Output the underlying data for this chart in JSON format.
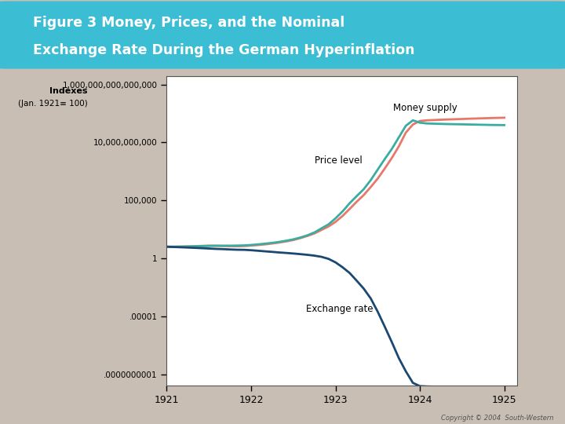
{
  "title_line1": "Figure 3 Money, Prices, and the Nominal",
  "title_line2": "Exchange Rate During the German Hyperinflation",
  "copyright": "Copyright © 2004  South-Western",
  "background_color": "#c8beb3",
  "plot_bg_color": "#ffffff",
  "title_bg_color": "#3bbdd4",
  "title_text_color": "#ffffff",
  "money_supply_color": "#e8786a",
  "price_level_color": "#3aada0",
  "exchange_rate_color": "#1a4870",
  "money_supply_label": "Money supply",
  "price_level_label": "Price level",
  "exchange_rate_label": "Exchange rate",
  "ytick_labels": [
    "1,000,000,000,000,000",
    "10,000,000,000",
    "100,000",
    "1",
    ".00001",
    ".0000000001"
  ],
  "ytick_values": [
    1000000000000000.0,
    10000000000.0,
    100000.0,
    1.0,
    1e-05,
    1e-10
  ],
  "ylim_min": 1e-11,
  "ylim_max": 5000000000000000.0,
  "x_years": [
    1921.0,
    1921.083,
    1921.167,
    1921.25,
    1921.333,
    1921.417,
    1921.5,
    1921.583,
    1921.667,
    1921.75,
    1921.833,
    1921.917,
    1922.0,
    1922.083,
    1922.167,
    1922.25,
    1922.333,
    1922.417,
    1922.5,
    1922.583,
    1922.667,
    1922.75,
    1922.833,
    1922.917,
    1923.0,
    1923.083,
    1923.167,
    1923.25,
    1923.333,
    1923.417,
    1923.5,
    1923.583,
    1923.667,
    1923.75,
    1923.833,
    1923.917,
    1924.0,
    1924.083,
    1924.167,
    1924.25,
    1924.333,
    1924.417,
    1924.5,
    1924.583,
    1924.667,
    1924.75,
    1924.833,
    1924.917,
    1925.0
  ],
  "money_supply_values": [
    10,
    10,
    10.3,
    10.8,
    11.2,
    11.8,
    12.3,
    12.0,
    11.5,
    11.2,
    11.0,
    11.4,
    12.5,
    14.0,
    16.0,
    19.0,
    23.0,
    29.0,
    38.0,
    55.0,
    85.0,
    140.0,
    280.0,
    560.0,
    1400.0,
    4500.0,
    18000.0,
    75000.0,
    280000.0,
    1400000.0,
    7500000.0,
    55000000.0,
    450000000.0,
    4500000000.0,
    70000000000.0,
    350000000000.0,
    700000000000.0,
    800000000000.0,
    850000000000.0,
    900000000000.0,
    950000000000.0,
    1000000000000.0,
    1050000000000.0,
    1100000000000.0,
    1150000000000.0,
    1200000000000.0,
    1250000000000.0,
    1300000000000.0,
    1350000000000.0
  ],
  "price_level_values": [
    10,
    10,
    10.1,
    10.4,
    10.8,
    11.2,
    11.7,
    12.2,
    12.3,
    12.3,
    12.6,
    13.0,
    14.2,
    16.0,
    18.5,
    21.5,
    26.0,
    33.0,
    43.0,
    62.0,
    96.0,
    170.0,
    380.0,
    850.0,
    2800.0,
    11000.0,
    56000.0,
    230000.0,
    900000.0,
    5500000.0,
    45000000.0,
    360000000.0,
    2700000000.0,
    27000000000.0,
    270000000000.0,
    800000000000.0,
    500000000000.0,
    430000000000.0,
    410000000000.0,
    395000000000.0,
    380000000000.0,
    370000000000.0,
    360000000000.0,
    350000000000.0,
    340000000000.0,
    330000000000.0,
    320000000000.0,
    315000000000.0,
    310000000000.0
  ],
  "exchange_rate_values": [
    10,
    9.5,
    9.0,
    8.5,
    8.0,
    7.5,
    7.0,
    6.5,
    6.2,
    5.8,
    5.5,
    5.4,
    5.0,
    4.5,
    4.0,
    3.6,
    3.2,
    2.9,
    2.6,
    2.3,
    2.0,
    1.7,
    1.35,
    0.9,
    0.45,
    0.17,
    0.055,
    0.012,
    0.0025,
    0.00035,
    2.5e-05,
    1.3e-06,
    6e-08,
    2.5e-09,
    1.8e-10,
    1.8e-11,
    9.5e-12,
    8.8e-12,
    8.5e-12,
    8.2e-12,
    8e-12,
    8e-12,
    8e-12,
    8e-12,
    8e-12,
    8e-12,
    8e-12,
    8e-12,
    8e-12
  ]
}
